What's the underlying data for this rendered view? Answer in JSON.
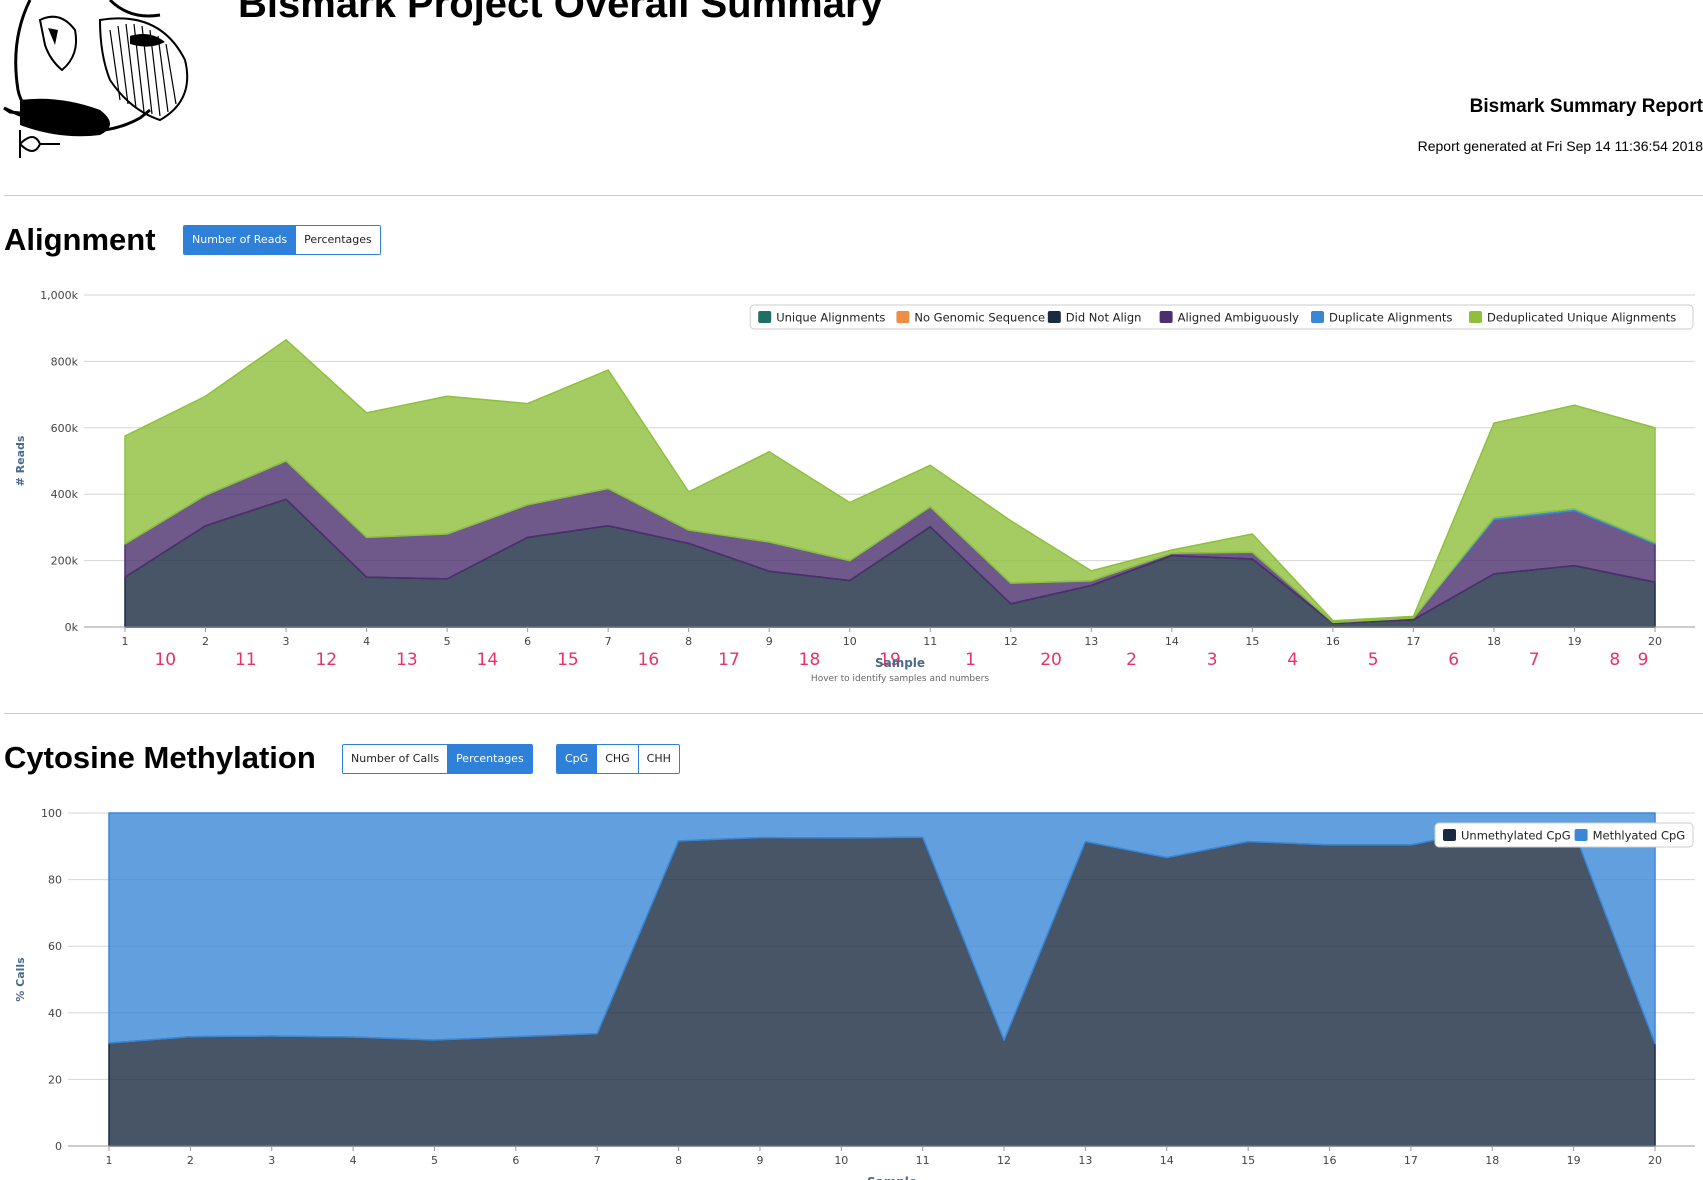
{
  "header": {
    "title": "Bismark Project Overall Summary",
    "report_title": "Bismark Summary Report",
    "report_date": "Report generated at Fri Sep 14 11:36:54 2018"
  },
  "alignment": {
    "section_title": "Alignment",
    "buttons": [
      {
        "label": "Number of Reads",
        "active": true
      },
      {
        "label": "Percentages",
        "active": false
      }
    ]
  },
  "methylation": {
    "section_title": "Cytosine Methylation",
    "buttons": [
      {
        "label": "Number of Calls",
        "active": false
      },
      {
        "label": "Percentages",
        "active": true
      }
    ],
    "context_buttons": [
      {
        "label": "CpG",
        "active": true
      },
      {
        "label": "CHG",
        "active": false
      },
      {
        "label": "CHH",
        "active": false
      }
    ]
  },
  "chart_data": [
    {
      "type": "area",
      "stacked": true,
      "title": "",
      "xlabel": "Sample",
      "ylabel": "# Reads",
      "note": "Hover to identify samples and numbers",
      "ylim": [
        0,
        1000000
      ],
      "y_ticks": [
        "0k",
        "200k",
        "400k",
        "600k",
        "800k",
        "1,000k"
      ],
      "x": [
        1,
        2,
        3,
        4,
        5,
        6,
        7,
        8,
        9,
        10,
        11,
        12,
        13,
        14,
        15,
        16,
        17,
        18,
        19,
        20
      ],
      "sample_numbers": [
        "10",
        "11",
        "12",
        "13",
        "14",
        "15",
        "16",
        "17",
        "18",
        "19",
        "1",
        "20",
        "2",
        "3",
        "4",
        "5",
        "6",
        "7",
        "8",
        "9"
      ],
      "grid": true,
      "legend_position": "top-right",
      "series": [
        {
          "name": "Unique Alignments",
          "color": "#1f6f63",
          "values": [
            0,
            0,
            0,
            0,
            0,
            0,
            0,
            0,
            0,
            0,
            0,
            0,
            0,
            0,
            0,
            0,
            0,
            0,
            0,
            0
          ]
        },
        {
          "name": "No Genomic Sequence",
          "color": "#ef8c46",
          "values": [
            0,
            0,
            0,
            0,
            0,
            0,
            0,
            0,
            0,
            0,
            0,
            0,
            0,
            0,
            0,
            0,
            0,
            0,
            0,
            0
          ]
        },
        {
          "name": "Did Not Align",
          "color": "#1a2a40",
          "values": [
            150000,
            305000,
            385000,
            150000,
            145000,
            270000,
            305000,
            252000,
            168000,
            140000,
            302000,
            70000,
            125000,
            215000,
            205000,
            11000,
            22000,
            160000,
            185000,
            135000
          ]
        },
        {
          "name": "Aligned Ambiguously",
          "color": "#4b2f6e",
          "values": [
            100000,
            92000,
            115000,
            120000,
            135000,
            98000,
            112000,
            40000,
            88000,
            60000,
            60000,
            62000,
            14000,
            7000,
            20000,
            3000,
            5000,
            163000,
            165000,
            115000
          ]
        },
        {
          "name": "Duplicate Alignments",
          "color": "#3a87d6",
          "values": [
            0,
            0,
            0,
            0,
            0,
            0,
            0,
            0,
            0,
            0,
            0,
            0,
            0,
            0,
            0,
            0,
            0,
            6000,
            6000,
            4000
          ]
        },
        {
          "name": "Deduplicated Unique Alignments",
          "color": "#8fbf3b",
          "values": [
            325000,
            298000,
            365000,
            375000,
            415000,
            305000,
            357000,
            115000,
            272000,
            175000,
            125000,
            188000,
            30000,
            10000,
            55000,
            5000,
            5000,
            285000,
            312000,
            346000
          ]
        }
      ]
    },
    {
      "type": "area",
      "stacked": true,
      "title": "",
      "xlabel": "Sample",
      "ylabel": "% Calls",
      "ylim": [
        0,
        100
      ],
      "y_ticks": [
        "0",
        "20",
        "40",
        "60",
        "80",
        "100"
      ],
      "x": [
        1,
        2,
        3,
        4,
        5,
        6,
        7,
        8,
        9,
        10,
        11,
        12,
        13,
        14,
        15,
        16,
        17,
        18,
        19,
        20
      ],
      "grid": true,
      "legend_position": "top-right",
      "series": [
        {
          "name": "Unmethylated CpG",
          "color": "#1a2a40",
          "values": [
            30.9,
            32.8,
            33.0,
            32.7,
            31.8,
            32.8,
            33.7,
            91.6,
            92.6,
            92.5,
            92.7,
            31.7,
            91.4,
            86.6,
            91.4,
            90.4,
            90.4,
            95.3,
            94.7,
            30.7
          ]
        },
        {
          "name": "Methlyated CpG",
          "color": "#3a87d6",
          "values": [
            69.1,
            67.2,
            67.0,
            67.3,
            68.2,
            67.2,
            66.3,
            8.4,
            7.4,
            7.5,
            7.3,
            68.3,
            8.6,
            13.4,
            8.6,
            9.6,
            9.6,
            4.7,
            5.3,
            69.3
          ]
        }
      ]
    }
  ]
}
